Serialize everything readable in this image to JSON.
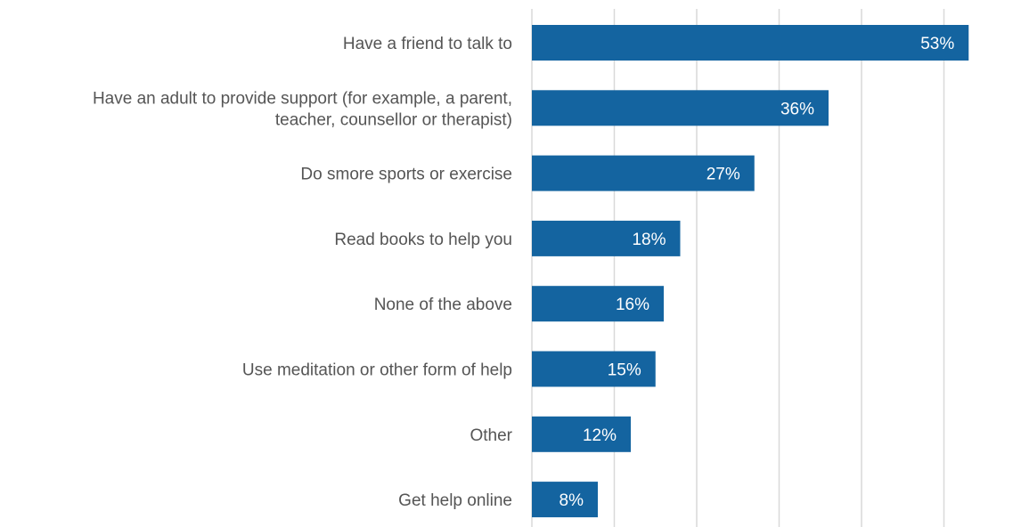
{
  "chart_data": {
    "type": "bar",
    "orientation": "horizontal",
    "categories": [
      [
        "Have a friend to talk to"
      ],
      [
        "Have an adult to provide support (for example, a parent,",
        "teacher, counsellor or therapist)"
      ],
      [
        "Do smore sports or exercise"
      ],
      [
        "Read books to help you"
      ],
      [
        "None of the above"
      ],
      [
        "Use meditation or other form of help"
      ],
      [
        "Other"
      ],
      [
        "Get help online"
      ]
    ],
    "values": [
      53,
      36,
      27,
      18,
      16,
      15,
      12,
      8
    ],
    "value_labels": [
      "53%",
      "36%",
      "27%",
      "18%",
      "16%",
      "15%",
      "12%",
      "8%"
    ],
    "xlim": [
      0,
      58
    ],
    "grid": true,
    "bar_color": "#1464a0"
  }
}
